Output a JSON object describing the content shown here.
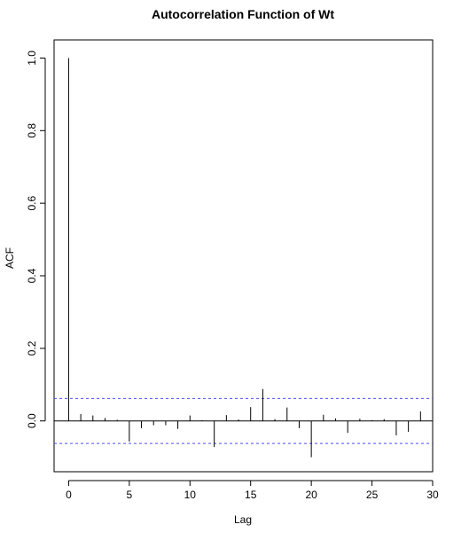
{
  "chart_data": {
    "type": "bar",
    "title": "Autocorrelation Function of Wt",
    "xlabel": "Lag",
    "ylabel": "ACF",
    "xlim": [
      -1.2,
      30
    ],
    "ylim": [
      -0.14,
      1.05
    ],
    "x_ticks": [
      0,
      5,
      10,
      15,
      20,
      25,
      30
    ],
    "y_ticks": [
      0.0,
      0.2,
      0.4,
      0.6,
      0.8,
      1.0
    ],
    "x_tick_labels": [
      "0",
      "5",
      "10",
      "15",
      "20",
      "25",
      "30"
    ],
    "y_tick_labels": [
      "0.0",
      "0.2",
      "0.4",
      "0.6",
      "0.8",
      "1.0"
    ],
    "confidence_bound": 0.062,
    "confidence_color": "#4d4dff",
    "lags": [
      0,
      1,
      2,
      3,
      4,
      5,
      6,
      7,
      8,
      9,
      10,
      11,
      12,
      13,
      14,
      15,
      16,
      17,
      18,
      19,
      20,
      21,
      22,
      23,
      24,
      25,
      26,
      27,
      28,
      29
    ],
    "values": [
      1.0,
      0.019,
      0.015,
      0.008,
      0.003,
      -0.057,
      -0.02,
      -0.012,
      -0.012,
      -0.022,
      0.015,
      0.002,
      -0.072,
      0.016,
      0.004,
      0.038,
      0.088,
      0.005,
      0.037,
      -0.02,
      -0.1,
      0.017,
      0.007,
      -0.033,
      0.006,
      0.002,
      0.005,
      -0.04,
      -0.03,
      0.026
    ]
  }
}
